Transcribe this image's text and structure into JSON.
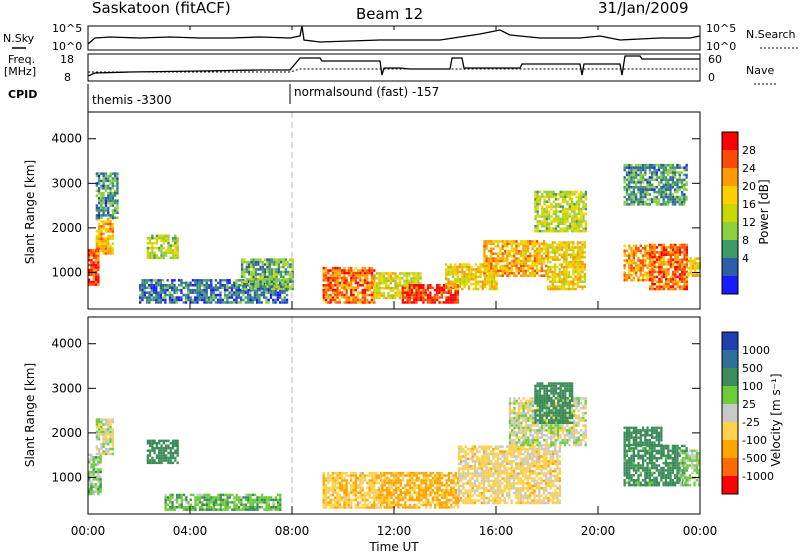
{
  "header": {
    "station": "Saskatoon (fitACF)",
    "beam": "Beam 12",
    "date": "31/Jan/2009"
  },
  "noise_panel": {
    "left_label": "N.Sky",
    "left_ticks": [
      "10^5",
      "10^0"
    ],
    "right_label": "N.Search",
    "right_ticks": [
      "10^5",
      "10^0"
    ]
  },
  "freq_panel": {
    "left_label_1": "Freq.",
    "left_label_2": "[MHz]",
    "left_ticks": [
      "18",
      "8"
    ],
    "right_label": "Nave",
    "right_ticks": [
      "60",
      "0"
    ]
  },
  "cpid_panel": {
    "label": "CPID",
    "segments": [
      {
        "name": "themis -3300",
        "start_hour": 0
      },
      {
        "name": "normalsound (fast) -157",
        "start_hour": 8
      }
    ]
  },
  "x_axis": {
    "label": "Time UT",
    "ticks": [
      "00:00",
      "04:00",
      "08:00",
      "12:00",
      "16:00",
      "20:00",
      "00:00"
    ]
  },
  "power_panel": {
    "ylabel": "Slant Range [km]",
    "yticks": [
      "4000",
      "3000",
      "2000",
      "1000"
    ],
    "colorbar_label": "Power [dB]",
    "colorbar_ticks": [
      "28",
      "24",
      "20",
      "16",
      "12",
      "8",
      "4"
    ],
    "colors": [
      "#ff0000",
      "#ff4a00",
      "#ff9a00",
      "#ffd000",
      "#c8d800",
      "#8ecf40",
      "#3d9a6a",
      "#2c5fa8",
      "#1a1aff"
    ]
  },
  "velocity_panel": {
    "ylabel": "Slant Range [km]",
    "yticks": [
      "4000",
      "3000",
      "2000",
      "1000"
    ],
    "colorbar_label": "Velocity [m s⁻¹]",
    "colorbar_ticks": [
      "1000",
      "500",
      "100",
      "25",
      "-25",
      "-100",
      "-500",
      "-1000"
    ],
    "colors": [
      "#1f3fb0",
      "#2f6f9a",
      "#3c8c5a",
      "#6ccc3a",
      "#c8c8c8",
      "#ffd24a",
      "#ffa400",
      "#ff6a00",
      "#ff0000"
    ]
  },
  "chart_data": {
    "type": "heatmap",
    "x_unit": "hours UT",
    "x_range": [
      0,
      24
    ],
    "y_unit": "km",
    "y_range": [
      180,
      4600
    ],
    "power_db_range": [
      0,
      30
    ],
    "velocity_range": [
      -1000,
      1000
    ],
    "power_blobs": [
      {
        "t0": 0.0,
        "t1": 0.4,
        "r0": 700,
        "r1": 1500,
        "value": 26
      },
      {
        "t0": 0.3,
        "t1": 1.0,
        "r0": 1400,
        "r1": 2200,
        "value": 20
      },
      {
        "t0": 0.3,
        "t1": 1.2,
        "r0": 2200,
        "r1": 3200,
        "value": 8
      },
      {
        "t0": 2.3,
        "t1": 3.5,
        "r0": 1300,
        "r1": 1800,
        "value": 14
      },
      {
        "t0": 2.0,
        "t1": 7.8,
        "r0": 300,
        "r1": 800,
        "value": 6
      },
      {
        "t0": 6.0,
        "t1": 8.0,
        "r0": 600,
        "r1": 1300,
        "value": 10
      },
      {
        "t0": 9.2,
        "t1": 11.2,
        "r0": 300,
        "r1": 1100,
        "value": 24
      },
      {
        "t0": 11.2,
        "t1": 13.0,
        "r0": 400,
        "r1": 1000,
        "value": 16
      },
      {
        "t0": 12.3,
        "t1": 14.5,
        "r0": 300,
        "r1": 700,
        "value": 28
      },
      {
        "t0": 14.0,
        "t1": 16.0,
        "r0": 600,
        "r1": 1200,
        "value": 18
      },
      {
        "t0": 15.5,
        "t1": 18.0,
        "r0": 900,
        "r1": 1700,
        "value": 20
      },
      {
        "t0": 17.5,
        "t1": 19.5,
        "r0": 1900,
        "r1": 2800,
        "value": 14
      },
      {
        "t0": 18.0,
        "t1": 19.5,
        "r0": 600,
        "r1": 1700,
        "value": 18
      },
      {
        "t0": 21.0,
        "t1": 22.2,
        "r0": 800,
        "r1": 1600,
        "value": 22
      },
      {
        "t0": 22.0,
        "t1": 23.5,
        "r0": 600,
        "r1": 1600,
        "value": 24
      },
      {
        "t0": 21.0,
        "t1": 23.5,
        "r0": 2500,
        "r1": 3400,
        "value": 8
      },
      {
        "t0": 23.5,
        "t1": 24.0,
        "r0": 900,
        "r1": 1300,
        "value": 18
      }
    ],
    "velocity_blobs": [
      {
        "t0": 0.0,
        "t1": 0.5,
        "r0": 600,
        "r1": 1500,
        "value": 60
      },
      {
        "t0": 0.3,
        "t1": 1.0,
        "r0": 1500,
        "r1": 2300,
        "value": 0
      },
      {
        "t0": 2.3,
        "t1": 3.5,
        "r0": 1300,
        "r1": 1800,
        "value": 200
      },
      {
        "t0": 3.0,
        "t1": 7.5,
        "r0": 250,
        "r1": 600,
        "value": 80
      },
      {
        "t0": 9.2,
        "t1": 11.5,
        "r0": 300,
        "r1": 1100,
        "value": -80
      },
      {
        "t0": 11.5,
        "t1": 14.5,
        "r0": 300,
        "r1": 1100,
        "value": -120
      },
      {
        "t0": 14.5,
        "t1": 18.5,
        "r0": 400,
        "r1": 1700,
        "value": -50
      },
      {
        "t0": 16.5,
        "t1": 19.5,
        "r0": 1700,
        "r1": 2800,
        "value": 0
      },
      {
        "t0": 17.5,
        "t1": 19.0,
        "r0": 2200,
        "r1": 3100,
        "value": 300
      },
      {
        "t0": 21.0,
        "t1": 23.5,
        "r0": 800,
        "r1": 1700,
        "value": 150
      },
      {
        "t0": 21.0,
        "t1": 22.5,
        "r0": 1700,
        "r1": 2100,
        "value": 400
      },
      {
        "t0": 23.2,
        "t1": 24.0,
        "r0": 800,
        "r1": 1600,
        "value": 40
      }
    ],
    "data_gaps": [
      [
        8.0,
        9.2
      ],
      [
        19.8,
        21.0
      ]
    ],
    "cpid_change_hour": 8.0
  }
}
